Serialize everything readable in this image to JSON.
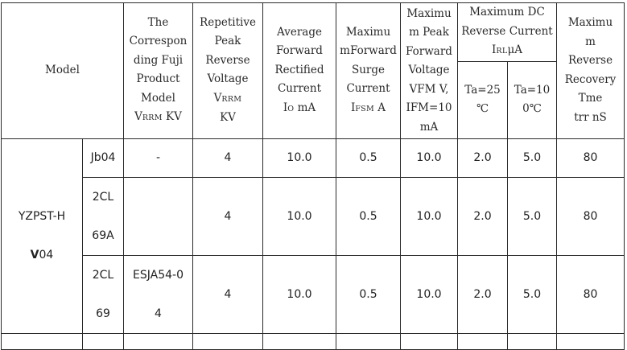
{
  "headers": {
    "model": "Model",
    "fuji_model": [
      "The",
      "Correspon",
      "ding Fuji",
      "Product",
      "Model"
    ],
    "fuji_model_sym": "V",
    "fuji_model_sub": "RRM",
    "fuji_model_unit": " KV",
    "vrrm": [
      "Repetitive",
      "Peak",
      "Reverse",
      "Voltage"
    ],
    "vrrm_sym": "V",
    "vrrm_sub": "RRM",
    "vrrm_unit": "KV",
    "io": [
      "Average",
      "Forward",
      "Rectified",
      "Current"
    ],
    "io_sym": "I",
    "io_sub": "O",
    "io_unit": " mA",
    "ifsm": [
      "Maximu",
      "mForward",
      "Surge",
      "Current"
    ],
    "ifsm_sym": "I",
    "ifsm_sub": "FSM",
    "ifsm_unit": " A",
    "vfm": [
      "Maximu",
      "m Peak",
      "Forward",
      "Voltage",
      "VFM V,",
      "IFM=10",
      "mA"
    ],
    "dc_reverse": [
      "Maximum DC",
      "Reverse Current"
    ],
    "dc_reverse_sym": "I",
    "dc_reverse_sub": "RL",
    "dc_reverse_unit": "μA",
    "ta25": [
      "Ta=25",
      "℃"
    ],
    "ta100": [
      "Ta=10",
      "0℃"
    ],
    "trr": [
      "Maximu",
      "m",
      "Reverse",
      "Recovery",
      "Tme",
      "trr nS"
    ]
  },
  "group": {
    "line1": "YZPST-H",
    "line2_bold": "V",
    "line2_rest": "04"
  },
  "rows": [
    {
      "sub_model": [
        "Jb04"
      ],
      "fuji": [
        "-"
      ],
      "vrrm": "4",
      "io": "10.0",
      "ifsm": "0.5",
      "vfm": "10.0",
      "ir25": "2.0",
      "ir100": "5.0",
      "trr": "80"
    },
    {
      "sub_model": [
        "2CL",
        "69A"
      ],
      "fuji": [
        ""
      ],
      "vrrm": "4",
      "io": "10.0",
      "ifsm": "0.5",
      "vfm": "10.0",
      "ir25": "2.0",
      "ir100": "5.0",
      "trr": "80"
    },
    {
      "sub_model": [
        "2CL",
        "69"
      ],
      "fuji": [
        "ESJA54-0",
        "4"
      ],
      "vrrm": "4",
      "io": "10.0",
      "ifsm": "0.5",
      "vfm": "10.0",
      "ir25": "2.0",
      "ir100": "5.0",
      "trr": "80"
    }
  ]
}
